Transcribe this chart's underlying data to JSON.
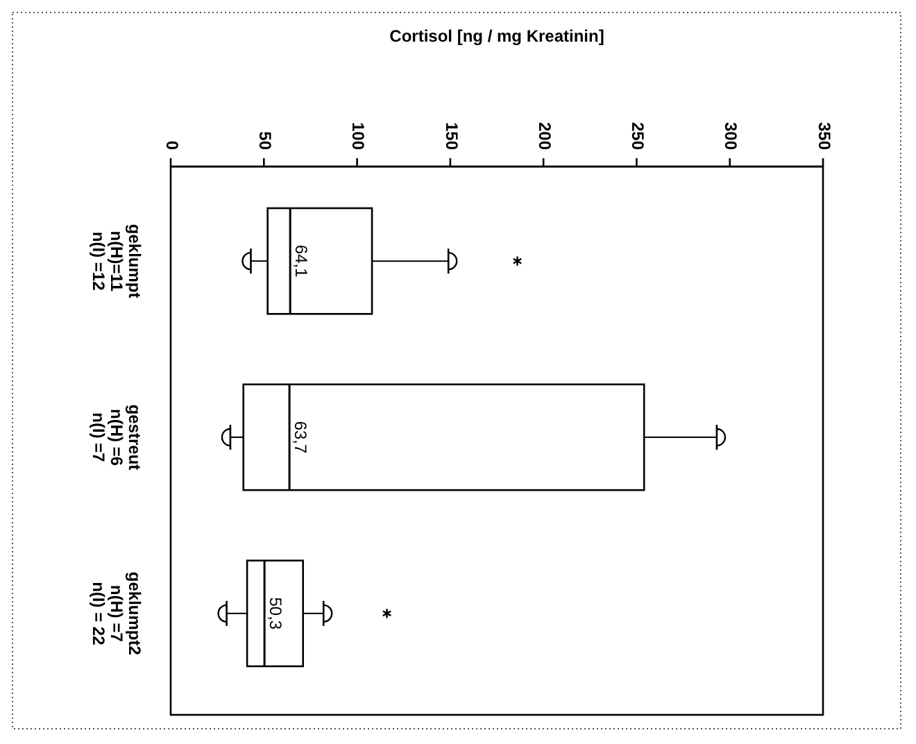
{
  "chart_data": {
    "type": "box",
    "orientation": "horizontal",
    "xlabel": "Cortisol [ng / mg Kreatinin]",
    "categories": [
      "geklumpt\nn(H)=11\nn(I) =12",
      "gestreut\nn(H) =6\nn(I) =7",
      "geklumpt2\nn(H) =7\nn(I) = 22"
    ],
    "boxes": [
      {
        "low": 43,
        "q1": 52,
        "median": 64.1,
        "q3": 108,
        "high": 149,
        "outliers": [
          186
        ]
      },
      {
        "low": 32,
        "q1": 39,
        "median": 63.7,
        "q3": 254,
        "high": 293
      },
      {
        "low": 30,
        "q1": 41,
        "median": 50.3,
        "q3": 71,
        "high": 82,
        "outliers": [
          116
        ]
      }
    ],
    "value_labels": [
      "64,1",
      "63,7",
      "50,3"
    ],
    "xlim": [
      0,
      350
    ],
    "xticks": [
      0,
      50,
      100,
      150,
      200,
      250,
      300,
      350
    ],
    "grid": false
  }
}
